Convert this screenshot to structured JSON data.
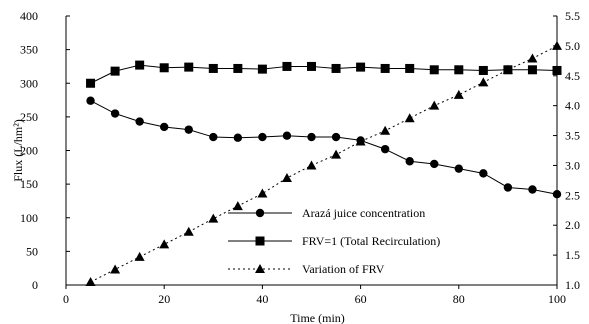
{
  "chart_data": {
    "type": "line",
    "xlabel": "Time (min)",
    "ylabel": "Flux (L/hm²)",
    "y2label": "",
    "xlim": [
      0,
      100
    ],
    "ylim": [
      0,
      400
    ],
    "y2lim": [
      1.0,
      5.5
    ],
    "xticks": [
      "0",
      "20",
      "40",
      "60",
      "80",
      "100"
    ],
    "yticks": [
      "0",
      "50",
      "100",
      "150",
      "200",
      "250",
      "300",
      "350",
      "400"
    ],
    "y2ticks": [
      "1.0",
      "1.5",
      "2.0",
      "2.5",
      "3.0",
      "3.5",
      "4.0",
      "4.5",
      "5.0",
      "5.5"
    ],
    "grid": false,
    "legend_position": "bottom-center",
    "series": [
      {
        "name": "Arazá juice concentration",
        "axis": "left",
        "marker": "circle",
        "line": "solid",
        "x": [
          5,
          10,
          15,
          20,
          25,
          30,
          35,
          40,
          45,
          50,
          55,
          60,
          65,
          70,
          75,
          80,
          85,
          90,
          95,
          100
        ],
        "values": [
          274,
          255,
          243,
          235,
          231,
          220,
          219,
          220,
          222,
          220,
          220,
          215,
          202,
          184,
          180,
          173,
          166,
          145,
          142,
          135
        ]
      },
      {
        "name": "FRV=1  (Total Recirculation)",
        "axis": "left",
        "marker": "square",
        "line": "solid",
        "x": [
          5,
          10,
          15,
          20,
          25,
          30,
          35,
          40,
          45,
          50,
          55,
          60,
          65,
          70,
          75,
          80,
          85,
          90,
          95,
          100
        ],
        "values": [
          300,
          318,
          327,
          323,
          324,
          322,
          322,
          321,
          325,
          325,
          322,
          324,
          322,
          322,
          320,
          320,
          319,
          320,
          320,
          319
        ]
      },
      {
        "name": "Variation of FRV",
        "axis": "right",
        "marker": "triangle",
        "line": "dotted",
        "x": [
          5,
          10,
          15,
          20,
          25,
          30,
          35,
          40,
          45,
          50,
          55,
          60,
          65,
          70,
          75,
          80,
          85,
          90,
          95,
          100
        ],
        "values": [
          1.05,
          1.26,
          1.47,
          1.68,
          1.89,
          2.11,
          2.32,
          2.53,
          2.79,
          3.0,
          3.18,
          3.4,
          3.58,
          3.79,
          4.0,
          4.18,
          4.39,
          4.6,
          4.79,
          5.0
        ]
      }
    ]
  }
}
